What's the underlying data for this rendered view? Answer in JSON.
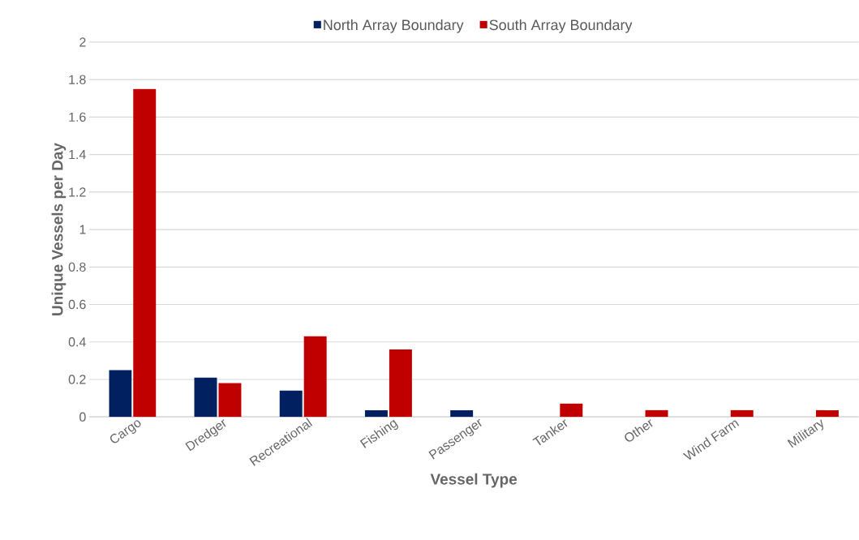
{
  "chart_data": {
    "type": "bar",
    "xlabel": "Vessel Type",
    "ylabel": "Unique Vessels per Day",
    "categories": [
      "Cargo",
      "Dredger",
      "Recreational",
      "Fishing",
      "Passenger",
      "Tanker",
      "Other",
      "Wind Farm",
      "Military"
    ],
    "series": [
      {
        "name": "North Array Boundary",
        "color": "#002060",
        "values": [
          0.25,
          0.21,
          0.14,
          0.035,
          0.035,
          0,
          0,
          0,
          0
        ]
      },
      {
        "name": "South Array Boundary",
        "color": "#c00000",
        "values": [
          1.75,
          0.18,
          0.43,
          0.36,
          0,
          0.071,
          0.036,
          0.036,
          0.036
        ]
      }
    ],
    "ylim": [
      0,
      2
    ],
    "yticks": [
      0,
      0.2,
      0.4,
      0.6,
      0.8,
      1,
      1.2,
      1.4,
      1.6,
      1.8,
      2
    ],
    "grid": "y",
    "legend": "top"
  }
}
